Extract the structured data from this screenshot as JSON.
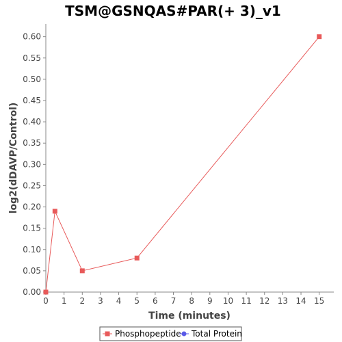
{
  "chart_data": {
    "type": "line",
    "title": "TSM@GSNQAS#PAR(+ 3)_v1",
    "xlabel": "Time (minutes)",
    "ylabel": "log2(dDAVP/Control)",
    "xlim": [
      0,
      15.8
    ],
    "ylim": [
      0,
      0.63
    ],
    "x_ticks": [
      0,
      1,
      2,
      3,
      4,
      5,
      6,
      7,
      8,
      9,
      10,
      11,
      12,
      13,
      14,
      15
    ],
    "x_tick_labels": [
      "0",
      "1",
      "2",
      "3",
      "4",
      "5",
      "6",
      "7",
      "8",
      "9",
      "10",
      "11",
      "12",
      "13",
      "14",
      "15"
    ],
    "y_ticks": [
      0,
      0.05,
      0.1,
      0.15,
      0.2,
      0.25,
      0.3,
      0.35,
      0.4,
      0.45,
      0.5,
      0.55,
      0.6
    ],
    "y_tick_labels": [
      "0.00",
      "0.05",
      "0.10",
      "0.15",
      "0.20",
      "0.25",
      "0.30",
      "0.35",
      "0.40",
      "0.45",
      "0.50",
      "0.55",
      "0.60"
    ],
    "grid": false,
    "legend_position": "bottom",
    "series": [
      {
        "name": "Phosphopeptide",
        "color": "#e85a5a",
        "marker": "square",
        "x": [
          0,
          0.5,
          2,
          5,
          15
        ],
        "y": [
          0,
          0.19,
          0.05,
          0.08,
          0.6
        ]
      },
      {
        "name": "Total Protein",
        "color": "#5a5ae8",
        "marker": "circle",
        "x": [],
        "y": []
      }
    ]
  }
}
